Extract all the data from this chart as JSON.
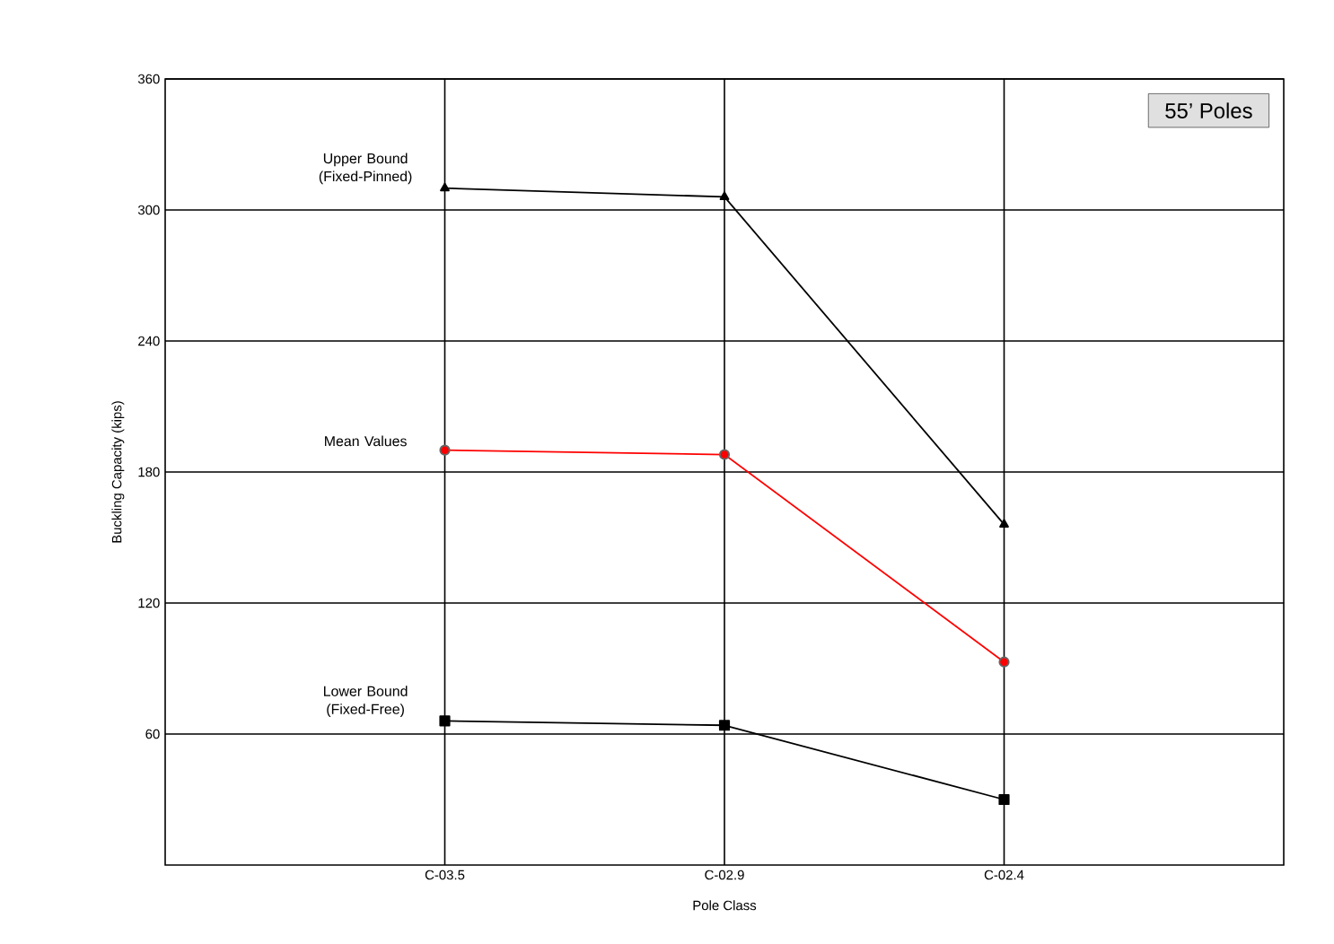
{
  "chart_data": {
    "type": "line",
    "title": "55’ Poles",
    "xlabel": "Pole Class",
    "ylabel": "Buckling Capacity (kips)",
    "categories": [
      "C-03.5",
      "C-02.9",
      "C-02.4"
    ],
    "series": [
      {
        "name": "Upper Bound (Fixed-Pinned)",
        "color": "#000000",
        "marker": "triangle",
        "values": [
          310,
          306,
          156
        ]
      },
      {
        "name": "Mean Values",
        "color": "#ff0000",
        "marker": "circle",
        "values": [
          190,
          188,
          93
        ]
      },
      {
        "name": "Lower Bound (Fixed-Free)",
        "color": "#000000",
        "marker": "square",
        "values": [
          66,
          64,
          30
        ]
      }
    ],
    "ylim": [
      0,
      360
    ],
    "yticks": [
      60,
      120,
      180,
      240,
      300,
      360
    ],
    "grid": true
  }
}
